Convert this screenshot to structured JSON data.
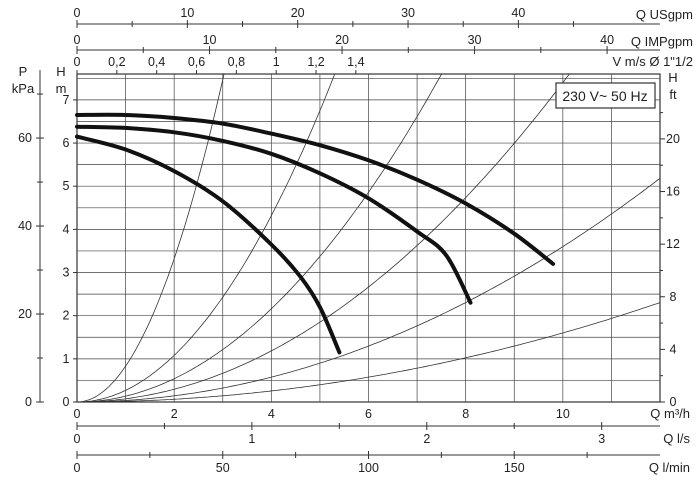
{
  "chart_data": {
    "type": "line",
    "annotation": "230 V~ 50 Hz",
    "x_axis": {
      "unit": "Q m³/h",
      "range": [
        0,
        12
      ],
      "ticks": [
        "0",
        "2",
        "4",
        "6",
        "8",
        "10"
      ]
    },
    "y_axis_left_h": {
      "title": "H",
      "unit": "m",
      "range": [
        0,
        7.6
      ],
      "ticks": [
        "0",
        "1",
        "2",
        "3",
        "4",
        "5",
        "6",
        "7"
      ]
    },
    "y_axis_left_p": {
      "title": "P",
      "unit": "kPa",
      "ticks": [
        "0",
        "20",
        "40",
        "60"
      ]
    },
    "y_axis_right": {
      "title": "H",
      "unit": "ft",
      "ticks": [
        "0",
        "4",
        "8",
        "12",
        "16",
        "20"
      ]
    },
    "top_axes": {
      "usgpm": {
        "label": "Q USgpm",
        "ticks": [
          "0",
          "10",
          "20",
          "30",
          "40"
        ]
      },
      "impgpm": {
        "label": "Q IMPgpm",
        "ticks": [
          "0",
          "10",
          "20",
          "30",
          "40"
        ]
      },
      "velocity": {
        "label": "V m/s Ø 1\"1/2",
        "ticks": [
          "0",
          "0,2",
          "0,4",
          "0,6",
          "0,8",
          "1",
          "1,2",
          "1,4"
        ]
      }
    },
    "bottom_axes": {
      "ls": {
        "label": "Q l/s",
        "ticks": [
          "0",
          "1",
          "2",
          "3"
        ]
      },
      "lmin": {
        "label": "Q l/min",
        "ticks": [
          "0",
          "50",
          "100",
          "150"
        ]
      }
    },
    "grid": true,
    "series": [
      {
        "points": [
          [
            0,
            6.65
          ],
          [
            1,
            6.65
          ],
          [
            2,
            6.58
          ],
          [
            3,
            6.45
          ],
          [
            4,
            6.22
          ],
          [
            5,
            5.95
          ],
          [
            6,
            5.6
          ],
          [
            7,
            5.15
          ],
          [
            8,
            4.6
          ],
          [
            9,
            3.9
          ],
          [
            9.8,
            3.2
          ]
        ]
      },
      {
        "points": [
          [
            0,
            6.38
          ],
          [
            1,
            6.35
          ],
          [
            2,
            6.25
          ],
          [
            3,
            6.05
          ],
          [
            4,
            5.75
          ],
          [
            5,
            5.3
          ],
          [
            6,
            4.72
          ],
          [
            7,
            3.95
          ],
          [
            7.6,
            3.4
          ],
          [
            8.1,
            2.3
          ]
        ]
      },
      {
        "points": [
          [
            0,
            6.15
          ],
          [
            1,
            5.85
          ],
          [
            2,
            5.35
          ],
          [
            3,
            4.65
          ],
          [
            4,
            3.65
          ],
          [
            4.6,
            2.9
          ],
          [
            5.0,
            2.2
          ],
          [
            5.4,
            1.15
          ]
        ]
      }
    ],
    "system_curves_k": [
      0.83,
      0.27,
      0.135,
      0.074,
      0.036,
      0.016
    ]
  }
}
